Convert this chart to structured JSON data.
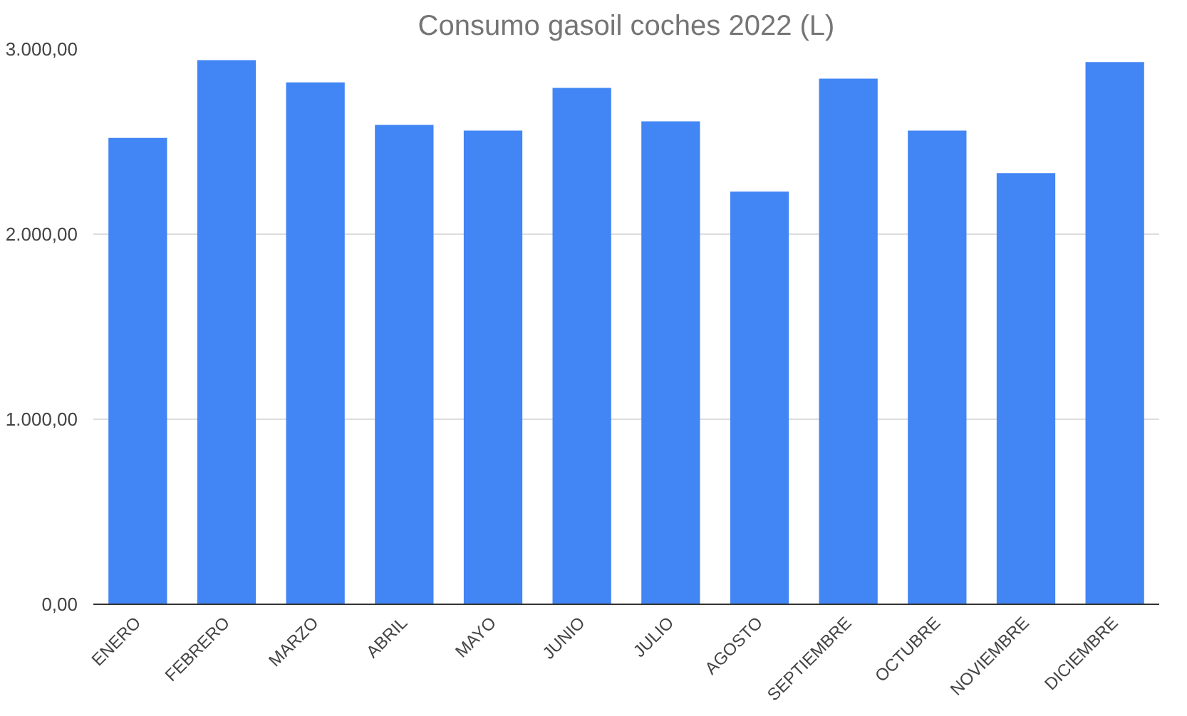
{
  "chart_data": {
    "type": "bar",
    "title": "Consumo gasoil coches 2022 (L)",
    "categories": [
      "ENERO",
      "FEBRERO",
      "MARZO",
      "ABRIL",
      "MAYO",
      "JUNIO",
      "JULIO",
      "AGOSTO",
      "SEPTIEMBRE",
      "OCTUBRE",
      "NOVIEMBRE",
      "DICIEMBRE"
    ],
    "values": [
      2520,
      2940,
      2820,
      2590,
      2560,
      2790,
      2610,
      2230,
      2840,
      2560,
      2330,
      2930
    ],
    "color": "#4285f4",
    "ylim": [
      0,
      3000
    ],
    "yticks": [
      {
        "value": 0,
        "label": "0,00"
      },
      {
        "value": 1000,
        "label": "1.000,00"
      },
      {
        "value": 2000,
        "label": "2.000,00"
      },
      {
        "value": 3000,
        "label": "3.000,00"
      }
    ],
    "grid": "y"
  }
}
